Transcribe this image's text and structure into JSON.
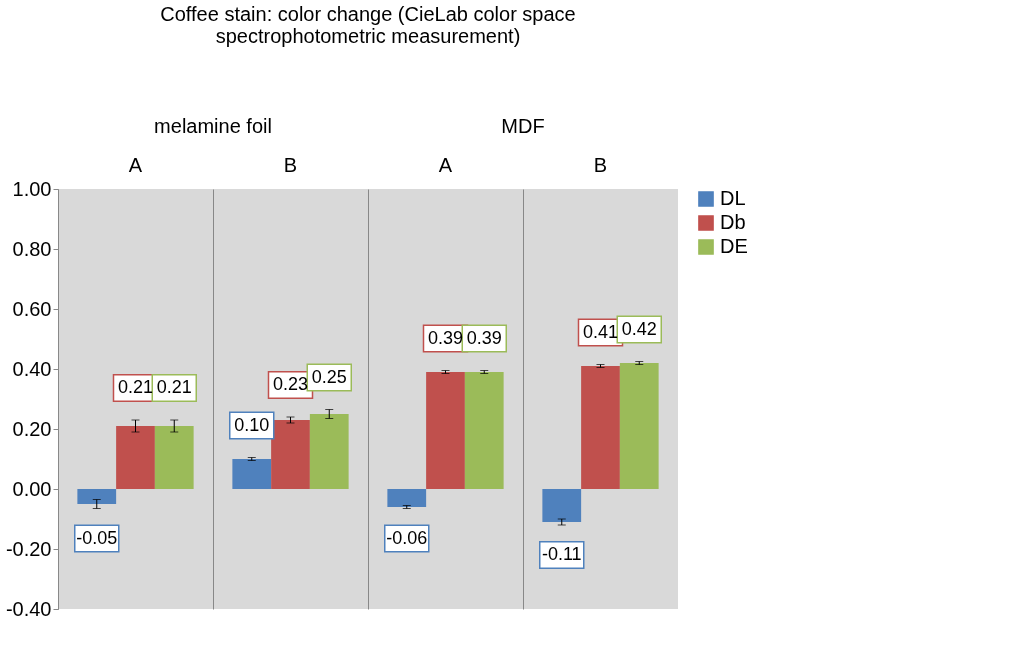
{
  "chart_data": {
    "type": "bar",
    "title": "Coffee stain: color change (CieLab color space spectrophotometric measurement)",
    "categories": [
      "A",
      "B",
      "A",
      "B"
    ],
    "annotations": [
      "melamine foil",
      "MDF"
    ],
    "series": [
      {
        "name": "DL",
        "color": "#4f81bd",
        "values": [
          -0.05,
          0.1,
          -0.06,
          -0.11
        ],
        "errors": [
          0.015,
          0.005,
          0.005,
          0.01
        ],
        "value_labels": [
          "-0.05",
          "0.10",
          "-0.06",
          "-0.11"
        ]
      },
      {
        "name": "Db",
        "color": "#c0504d",
        "values": [
          0.21,
          0.23,
          0.39,
          0.41
        ],
        "errors": [
          0.02,
          0.01,
          0.005,
          0.005
        ],
        "value_labels": [
          "0.21",
          "0.23",
          "0.39",
          "0.41"
        ]
      },
      {
        "name": "DE",
        "color": "#9bbb59",
        "values": [
          0.21,
          0.25,
          0.39,
          0.42
        ],
        "errors": [
          0.02,
          0.015,
          0.005,
          0.005
        ],
        "value_labels": [
          "0.21",
          "0.25",
          "0.39",
          "0.42"
        ]
      }
    ],
    "ylim": [
      -0.4,
      1.0
    ],
    "yticks": [
      {
        "value": -0.4,
        "label": "-0.40"
      },
      {
        "value": -0.2,
        "label": "-0.20"
      },
      {
        "value": 0,
        "label": "0.00"
      },
      {
        "value": 0.2,
        "label": "0.20"
      },
      {
        "value": 0.4,
        "label": "0.40"
      },
      {
        "value": 0.6,
        "label": "0.60"
      },
      {
        "value": 0.8,
        "label": "0.80"
      },
      {
        "value": 1.0,
        "label": "1.00"
      }
    ],
    "grid": "x",
    "legend": "right"
  }
}
